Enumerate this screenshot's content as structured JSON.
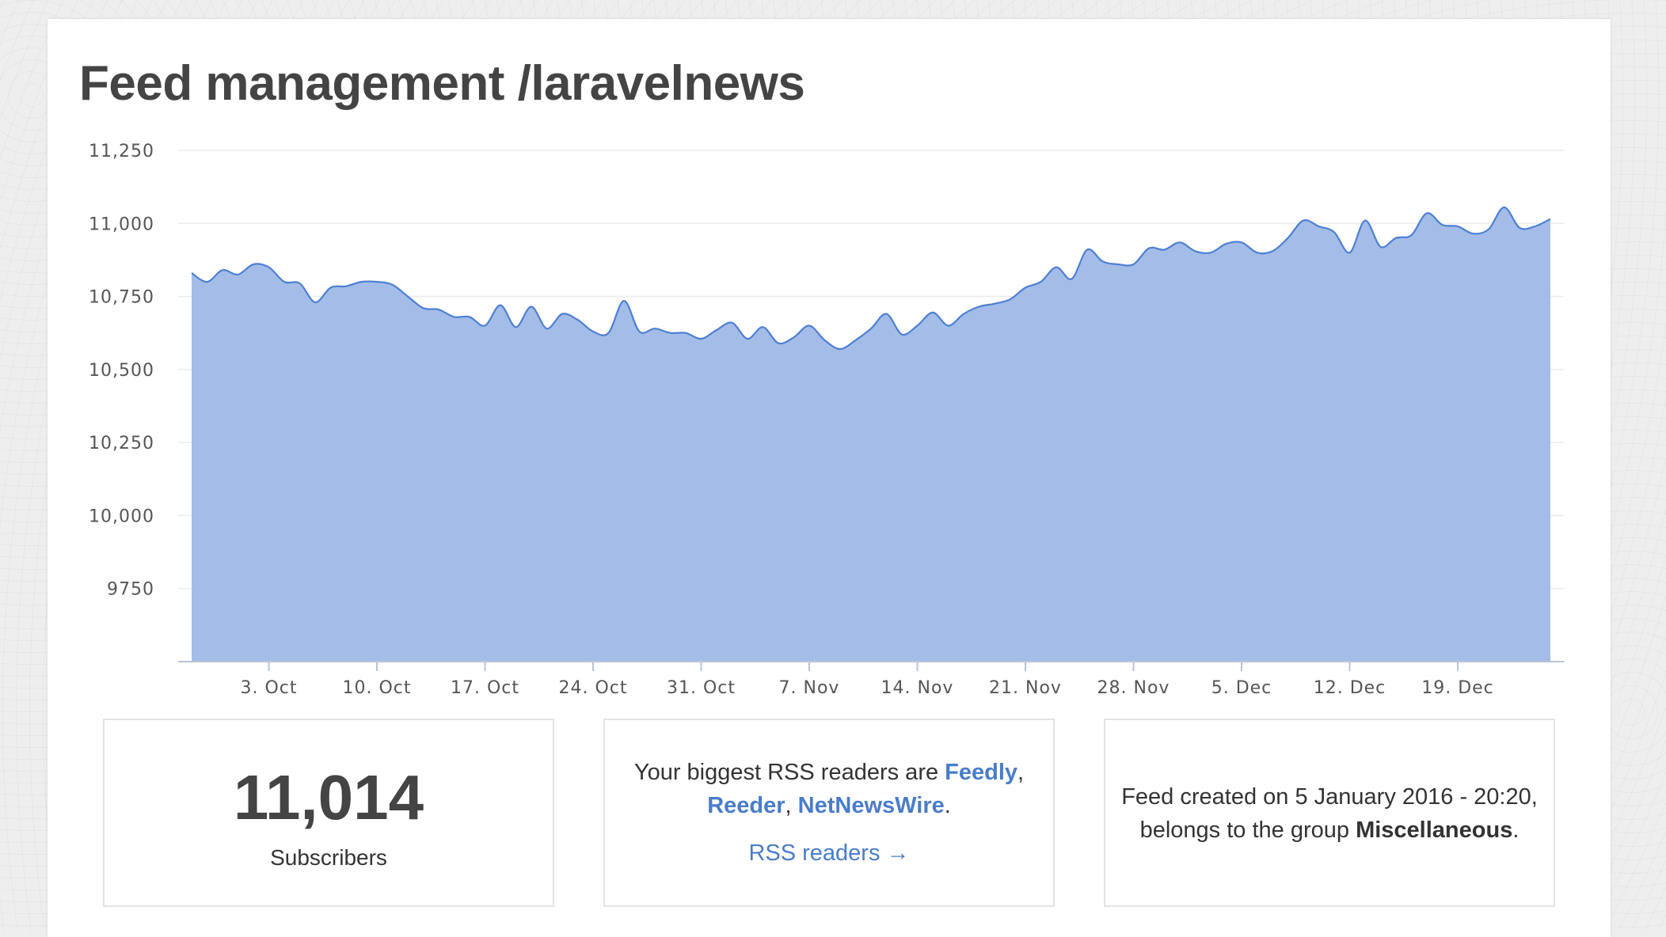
{
  "page": {
    "title": "Feed management /laravelnews"
  },
  "colors": {
    "area_fill": "#a3bde8",
    "area_line": "#4f7fd2",
    "link": "#4a7cc9",
    "grid": "#ececec"
  },
  "chart_data": {
    "type": "area",
    "title": "",
    "xlabel": "",
    "ylabel": "",
    "ylim": [
      9500,
      11250
    ],
    "y_ticks": [
      "9750",
      "10,000",
      "10,250",
      "10,500",
      "10,750",
      "11,000",
      "11,250"
    ],
    "y_tick_values": [
      9750,
      10000,
      10250,
      10500,
      10750,
      11000,
      11250
    ],
    "x_ticks": [
      "3. Oct",
      "10. Oct",
      "17. Oct",
      "24. Oct",
      "31. Oct",
      "7. Nov",
      "14. Nov",
      "21. Nov",
      "28. Nov",
      "5. Dec",
      "12. Dec",
      "19. Dec"
    ],
    "x_tick_days": [
      3,
      10,
      17,
      24,
      31,
      38,
      45,
      52,
      59,
      66,
      73,
      80
    ],
    "x_start_day": -2,
    "grid": true,
    "series": [
      {
        "values": [
          10830,
          10800,
          10840,
          10825,
          10860,
          10850,
          10800,
          10795,
          10730,
          10780,
          10785,
          10800,
          10800,
          10790,
          10750,
          10710,
          10705,
          10680,
          10680,
          10650,
          10720,
          10645,
          10715,
          10640,
          10690,
          10670,
          10630,
          10625,
          10735,
          10630,
          10640,
          10625,
          10625,
          10605,
          10635,
          10660,
          10605,
          10645,
          10590,
          10610,
          10650,
          10600,
          10570,
          10600,
          10640,
          10690,
          10620,
          10650,
          10695,
          10650,
          10690,
          10715,
          10725,
          10740,
          10780,
          10800,
          10850,
          10810,
          10910,
          10870,
          10860,
          10860,
          10915,
          10910,
          10935,
          10905,
          10900,
          10930,
          10935,
          10900,
          10905,
          10950,
          11010,
          10990,
          10970,
          10900,
          11010,
          10920,
          10950,
          10960,
          11035,
          10995,
          10990,
          10965,
          10980,
          11055,
          10985,
          10990,
          11015
        ]
      }
    ]
  },
  "cards": {
    "subscribers": {
      "count": "11,014",
      "label": "Subscribers"
    },
    "readers": {
      "text_before": "Your biggest RSS readers are ",
      "reader1": "Feedly",
      "sep1": ",",
      "reader2": "Reeder",
      "sep2": ", ",
      "reader3": "NetNewsWire",
      "period": ".",
      "link_label": "RSS readers →"
    },
    "info": {
      "text_before": "Feed created on 5 January 2016 - 20:20, belongs to the group ",
      "group": "Miscellaneous",
      "period": "."
    }
  }
}
